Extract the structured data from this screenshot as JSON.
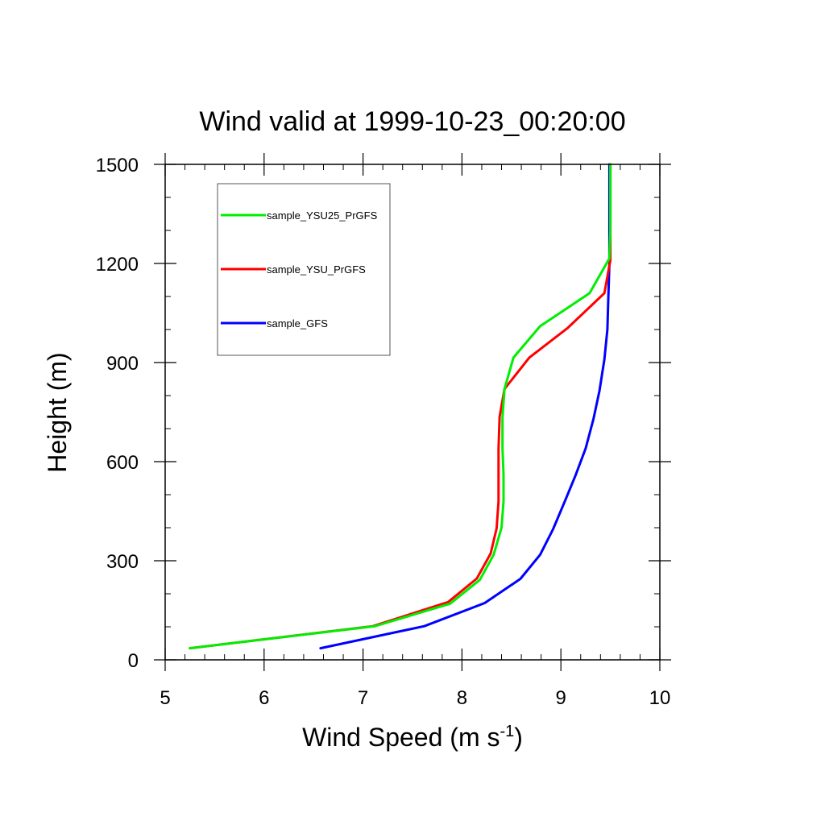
{
  "chart_data": {
    "type": "line",
    "title": "Wind valid at 1999-10-23_00:20:00",
    "xlabel": {
      "main": "Wind Speed (m s",
      "sup": "-1",
      "close": ")"
    },
    "ylabel": "Height (m)",
    "xlim": [
      5,
      10
    ],
    "ylim": [
      0,
      1500
    ],
    "xticks": [
      5,
      6,
      7,
      8,
      9,
      10
    ],
    "yticks": [
      0,
      300,
      600,
      900,
      1200,
      1500
    ],
    "x_minor_step": 0.2,
    "y_minor_step": 100,
    "grid": false,
    "legend_position": "top-left",
    "series": [
      {
        "name": "sample_YSU25_PrGFS",
        "color": "#00ee00",
        "points": [
          [
            5.25,
            35
          ],
          [
            7.12,
            102
          ],
          [
            7.88,
            170
          ],
          [
            8.18,
            242
          ],
          [
            8.32,
            318
          ],
          [
            8.4,
            400
          ],
          [
            8.42,
            480
          ],
          [
            8.42,
            560
          ],
          [
            8.41,
            640
          ],
          [
            8.41,
            735
          ],
          [
            8.43,
            820
          ],
          [
            8.52,
            915
          ],
          [
            8.79,
            1010
          ],
          [
            9.29,
            1110
          ],
          [
            9.49,
            1215
          ],
          [
            9.5,
            1300
          ],
          [
            9.5,
            1400
          ],
          [
            9.5,
            1500
          ]
        ]
      },
      {
        "name": "sample_YSU_PrGFS",
        "color": "#ff0000",
        "points": [
          [
            5.25,
            35
          ],
          [
            7.1,
            102
          ],
          [
            7.86,
            175
          ],
          [
            8.15,
            246
          ],
          [
            8.29,
            322
          ],
          [
            8.35,
            398
          ],
          [
            8.37,
            480
          ],
          [
            8.37,
            560
          ],
          [
            8.37,
            640
          ],
          [
            8.38,
            735
          ],
          [
            8.43,
            820
          ],
          [
            8.68,
            915
          ],
          [
            9.07,
            1005
          ],
          [
            9.44,
            1110
          ],
          [
            9.5,
            1210
          ],
          [
            9.5,
            1300
          ],
          [
            9.5,
            1400
          ],
          [
            9.5,
            1500
          ]
        ]
      },
      {
        "name": "sample_GFS",
        "color": "#0000ff",
        "points": [
          [
            6.57,
            35
          ],
          [
            7.62,
            102
          ],
          [
            8.23,
            172
          ],
          [
            8.59,
            245
          ],
          [
            8.79,
            318
          ],
          [
            8.92,
            395
          ],
          [
            9.04,
            480
          ],
          [
            9.15,
            560
          ],
          [
            9.25,
            640
          ],
          [
            9.33,
            730
          ],
          [
            9.39,
            815
          ],
          [
            9.44,
            910
          ],
          [
            9.47,
            1000
          ],
          [
            9.48,
            1100
          ],
          [
            9.49,
            1200
          ],
          [
            9.49,
            1300
          ],
          [
            9.49,
            1400
          ],
          [
            9.49,
            1500
          ]
        ]
      }
    ]
  }
}
